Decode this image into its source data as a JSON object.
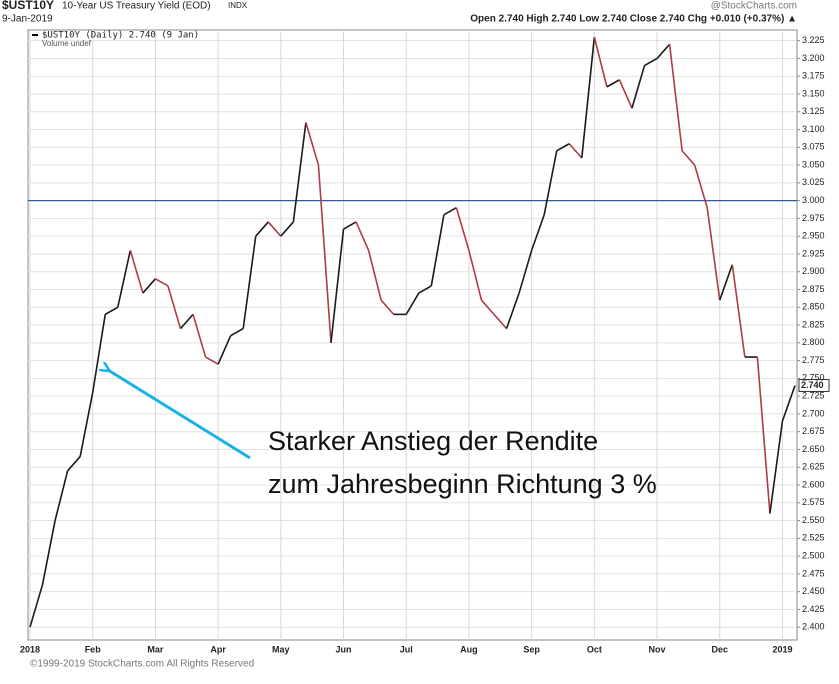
{
  "chart_data": {
    "type": "line",
    "symbol": "$UST10Y",
    "title": "10-Year US Treasury Yield (EOD)",
    "exchange": "INDX",
    "date": "9-Jan-2019",
    "quote": "Open 2.740  High 2.740  Low 2.740  Close 2.740  Chg +0.010 (+0.37%) ▲",
    "source": "@StockCharts.com",
    "legend": [
      "$UST10Y (Daily) 2.740 (9 Jan)",
      "Volume undef"
    ],
    "footer": "©1999-2019 StockCharts.com All Rights Reserved",
    "annotation": [
      "Starker Anstieg der Rendite",
      "zum Jahresbeginn Richtung 3 %"
    ],
    "reference_line": 3,
    "reference_color": "#2e5c9a",
    "up_color": "#1a1a1a",
    "down_color": "#b03a48",
    "categories": [
      "2018",
      null,
      null,
      null,
      null,
      "Feb",
      null,
      null,
      null,
      null,
      "Mar",
      null,
      null,
      null,
      null,
      "Apr",
      null,
      null,
      null,
      null,
      "May",
      null,
      null,
      null,
      null,
      "Jun",
      null,
      null,
      null,
      null,
      "Jul",
      null,
      null,
      null,
      null,
      "Aug",
      null,
      null,
      null,
      null,
      "Sep",
      null,
      null,
      null,
      null,
      "Oct",
      null,
      null,
      null,
      null,
      "Nov",
      null,
      null,
      null,
      null,
      "Dec",
      null,
      null,
      null,
      null,
      "2019",
      null
    ],
    "values": [
      2.4,
      2.46,
      2.55,
      2.62,
      2.64,
      2.73,
      2.84,
      2.85,
      2.93,
      2.87,
      2.89,
      2.88,
      2.82,
      2.84,
      2.78,
      2.77,
      2.81,
      2.82,
      2.95,
      2.97,
      2.95,
      2.97,
      3.11,
      3.05,
      2.8,
      2.96,
      2.97,
      2.93,
      2.86,
      2.84,
      2.84,
      2.87,
      2.88,
      2.98,
      2.99,
      2.93,
      2.86,
      2.84,
      2.82,
      2.87,
      2.93,
      2.98,
      3.07,
      3.08,
      3.06,
      3.23,
      3.16,
      3.17,
      3.13,
      3.19,
      3.2,
      3.22,
      3.07,
      3.05,
      2.99,
      2.86,
      2.91,
      2.78,
      2.78,
      2.56,
      2.69,
      2.74
    ],
    "value_labels": [
      null,
      null,
      null,
      null,
      null,
      null,
      null,
      null,
      null,
      null,
      null,
      null,
      null,
      null,
      null,
      null,
      null,
      null,
      null,
      null,
      null,
      null,
      null,
      null,
      null,
      null,
      null,
      null,
      null,
      null,
      null,
      null,
      null,
      null,
      null,
      null,
      null,
      null,
      null,
      null,
      null,
      null,
      null,
      null,
      null,
      null,
      null,
      null,
      null,
      null,
      null,
      null,
      null,
      null,
      null,
      null,
      null,
      null,
      null,
      null,
      null,
      "2.740"
    ],
    "ylim": [
      2.382,
      3.24
    ],
    "yticks": [
      {
        "value": 2.4,
        "label": "2.400"
      },
      {
        "value": 2.425,
        "label": "2.425"
      },
      {
        "value": 2.45,
        "label": "2.450"
      },
      {
        "value": 2.475,
        "label": "2.475"
      },
      {
        "value": 2.5,
        "label": "2.500"
      },
      {
        "value": 2.525,
        "label": "2.525"
      },
      {
        "value": 2.55,
        "label": "2.550"
      },
      {
        "value": 2.575,
        "label": "2.575"
      },
      {
        "value": 2.6,
        "label": "2.600"
      },
      {
        "value": 2.625,
        "label": "2.625"
      },
      {
        "value": 2.65,
        "label": "2.650"
      },
      {
        "value": 2.675,
        "label": "2.675"
      },
      {
        "value": 2.7,
        "label": "2.700"
      },
      {
        "value": 2.725,
        "label": "2.725"
      },
      {
        "value": 2.75,
        "label": "2.750"
      },
      {
        "value": 2.775,
        "label": "2.775"
      },
      {
        "value": 2.8,
        "label": "2.800"
      },
      {
        "value": 2.825,
        "label": "2.825"
      },
      {
        "value": 2.85,
        "label": "2.850"
      },
      {
        "value": 2.875,
        "label": "2.875"
      },
      {
        "value": 2.9,
        "label": "2.900"
      },
      {
        "value": 2.925,
        "label": "2.925"
      },
      {
        "value": 2.95,
        "label": "2.950"
      },
      {
        "value": 2.975,
        "label": "2.975"
      },
      {
        "value": 3.0,
        "label": "3.000"
      },
      {
        "value": 3.025,
        "label": "3.025"
      },
      {
        "value": 3.05,
        "label": "3.050"
      },
      {
        "value": 3.075,
        "label": "3.075"
      },
      {
        "value": 3.1,
        "label": "3.100"
      },
      {
        "value": 3.125,
        "label": "3.125"
      },
      {
        "value": 3.15,
        "label": "3.150"
      },
      {
        "value": 3.175,
        "label": "3.175"
      },
      {
        "value": 3.2,
        "label": "3.200"
      },
      {
        "value": 3.225,
        "label": "3.225"
      }
    ],
    "grid": true
  }
}
